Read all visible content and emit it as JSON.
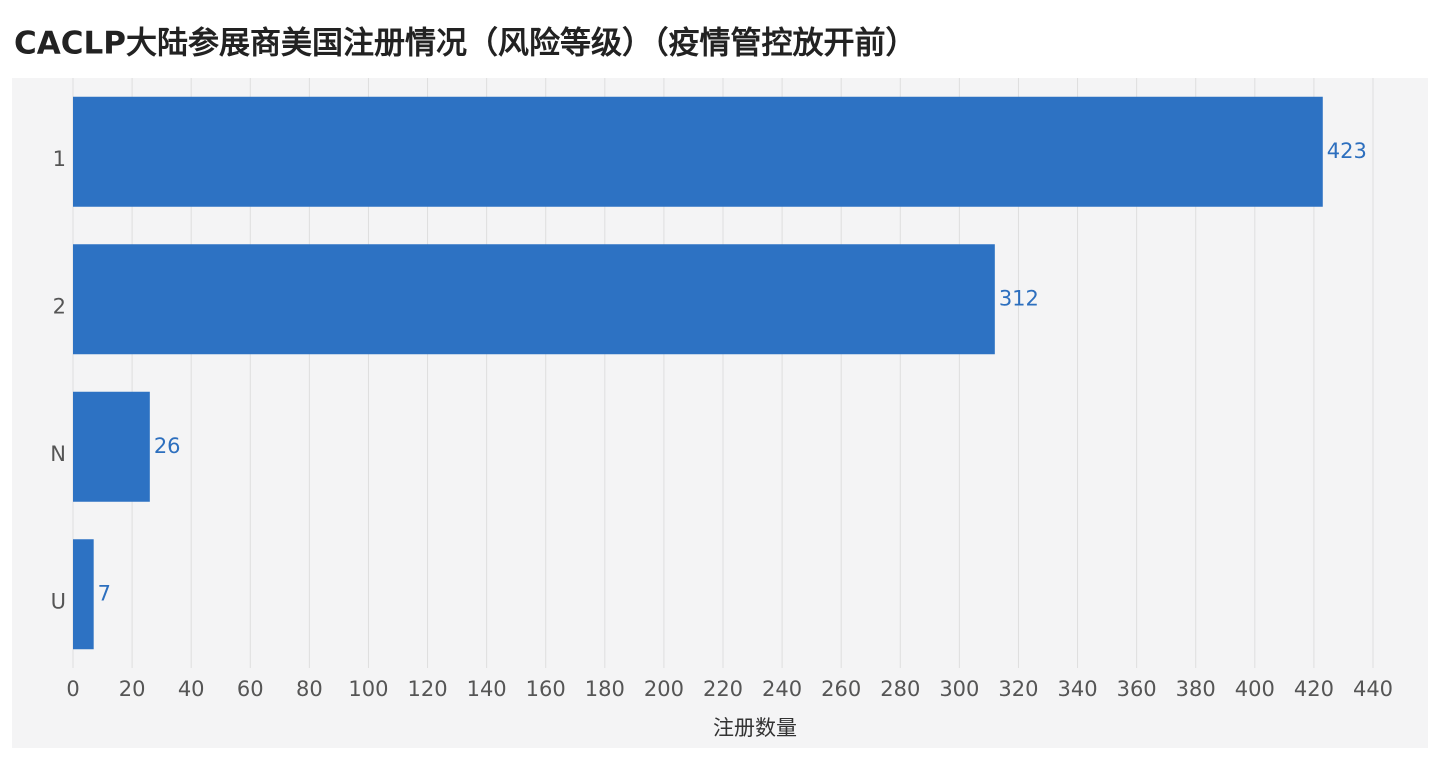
{
  "chart_data": {
    "type": "bar",
    "orientation": "horizontal",
    "title": "CACLP大陆参展商美国注册情况（风险等级）（疫情管控放开前）",
    "x_label": "注册数量",
    "categories": [
      "1",
      "2",
      "N",
      "U"
    ],
    "values": [
      423,
      312,
      26,
      7
    ],
    "color": "#2d72c3",
    "xlim": [
      0,
      440
    ],
    "xticks": [
      0,
      20,
      40,
      60,
      80,
      100,
      120,
      140,
      160,
      180,
      200,
      220,
      240,
      260,
      280,
      300,
      320,
      340,
      360,
      380,
      400,
      420,
      440
    ],
    "grid": true
  }
}
